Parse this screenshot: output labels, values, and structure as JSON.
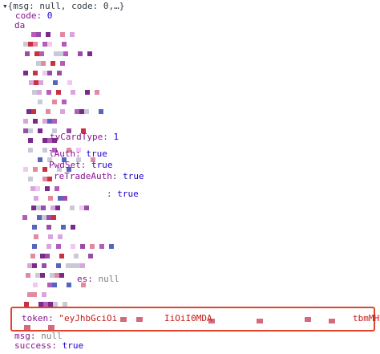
{
  "header": "▾{msg: null, code: 0,…}",
  "lines": [
    {
      "key": "code:",
      "value": "0",
      "kind": "num"
    },
    {
      "key": "da"
    },
    {
      "key": "tyCardType:",
      "value": "1",
      "kind": "num"
    },
    {
      "key": "lAuth:",
      "value": "true",
      "kind": "bool"
    },
    {
      "key": "PwdSet:",
      "value": "true",
      "kind": "bool"
    },
    {
      "key": "reTradeAuth:",
      "value": "true",
      "kind": "bool"
    },
    {
      "key": ":",
      "value": "true",
      "kind": "bool"
    },
    {
      "key": "es:",
      "value": "null",
      "kind": "null"
    },
    {
      "key": "token:",
      "value": "\"eyJhbGciOi",
      "kind": "str"
    },
    {
      "value": "IiOiI0MDA",
      "kind": "str"
    },
    {
      "value": "tbmMHUh",
      "kind": "str"
    },
    {
      "key": "msg:",
      "value": "null",
      "kind": "null"
    },
    {
      "key": "success:",
      "value": "true",
      "kind": "bool"
    }
  ]
}
